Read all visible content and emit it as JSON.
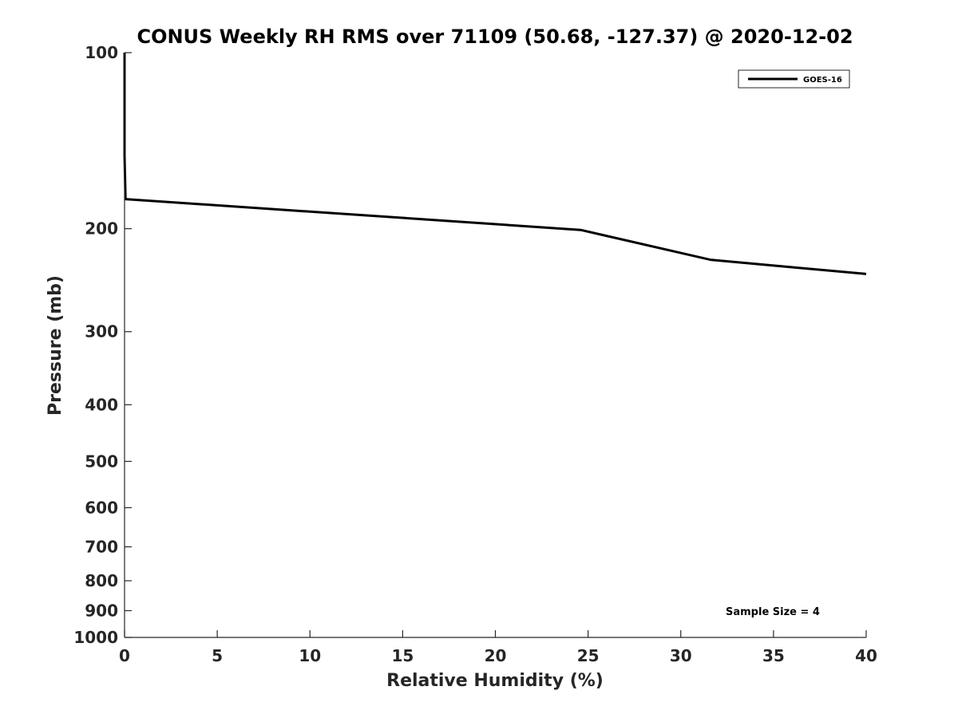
{
  "chart_data": {
    "type": "line",
    "title": "CONUS Weekly RH RMS over 71109 (50.68, -127.37) @ 2020-12-02",
    "xlabel": "Relative Humidity (%)",
    "ylabel": "Pressure (mb)",
    "xlim": [
      0,
      40
    ],
    "ylim": [
      100,
      1000
    ],
    "y_scale": "log",
    "y_reversed": true,
    "x_ticks": [
      0,
      5,
      10,
      15,
      20,
      25,
      30,
      35,
      40
    ],
    "x_tick_labels": [
      "0",
      "5",
      "10",
      "15",
      "20",
      "25",
      "30",
      "35",
      "40"
    ],
    "y_ticks": [
      100,
      200,
      300,
      400,
      500,
      600,
      700,
      800,
      900,
      1000
    ],
    "y_tick_labels": [
      "100",
      "200",
      "300",
      "400",
      "500",
      "600",
      "700",
      "800",
      "900",
      "1000"
    ],
    "grid": false,
    "legend_position": "top-right",
    "series": [
      {
        "name": "GOES-16",
        "color": "#000000",
        "points": [
          {
            "x": 0.0,
            "y": 100
          },
          {
            "x": 0.0,
            "y": 150
          },
          {
            "x": 0.05,
            "y": 178
          },
          {
            "x": 24.6,
            "y": 201
          },
          {
            "x": 31.6,
            "y": 226
          },
          {
            "x": 40.0,
            "y": 239
          }
        ]
      }
    ],
    "annotations": [
      {
        "text": "Sample Size = 4",
        "position": "bottom-right"
      }
    ]
  }
}
